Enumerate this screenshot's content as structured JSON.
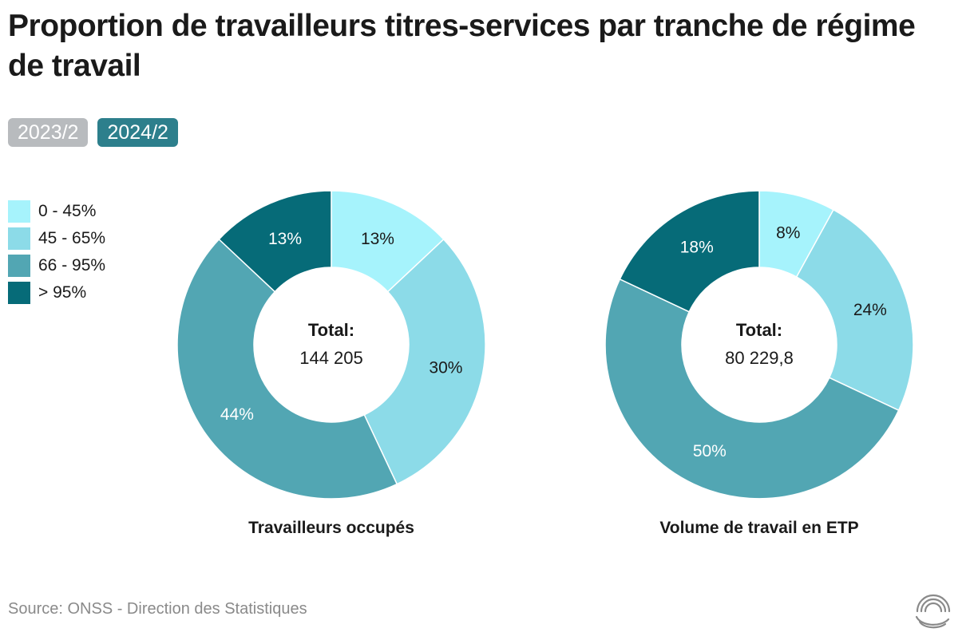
{
  "title": "Proportion de travailleurs titres-services par tranche de régime de travail",
  "tabs": [
    {
      "label": "2023/2",
      "active": false
    },
    {
      "label": "2024/2",
      "active": true
    }
  ],
  "legend": [
    {
      "label": "0 - 45%",
      "color": "#a6f3fc"
    },
    {
      "label": "45 - 65%",
      "color": "#8cdbe8"
    },
    {
      "label": "66 - 95%",
      "color": "#52a6b3"
    },
    {
      "label": "> 95%",
      "color": "#066b78"
    }
  ],
  "source": "Source: ONSS - Direction des Statistiques",
  "chart_data": [
    {
      "type": "pie",
      "subtype": "donut",
      "title": "Travailleurs occupés",
      "center_label": "Total:",
      "center_value": "144 205",
      "categories": [
        "0 - 45%",
        "45 - 65%",
        "66 - 95%",
        "> 95%"
      ],
      "values": [
        13,
        30,
        44,
        13
      ],
      "labels": [
        "13%",
        "30%",
        "44%",
        "13%"
      ]
    },
    {
      "type": "pie",
      "subtype": "donut",
      "title": "Volume de travail en ETP",
      "center_label": "Total:",
      "center_value": "80 229,8",
      "categories": [
        "0 - 45%",
        "45 - 65%",
        "66 - 95%",
        "> 95%"
      ],
      "values": [
        8,
        24,
        50,
        18
      ],
      "labels": [
        "8%",
        "24%",
        "50%",
        "18%"
      ]
    }
  ]
}
